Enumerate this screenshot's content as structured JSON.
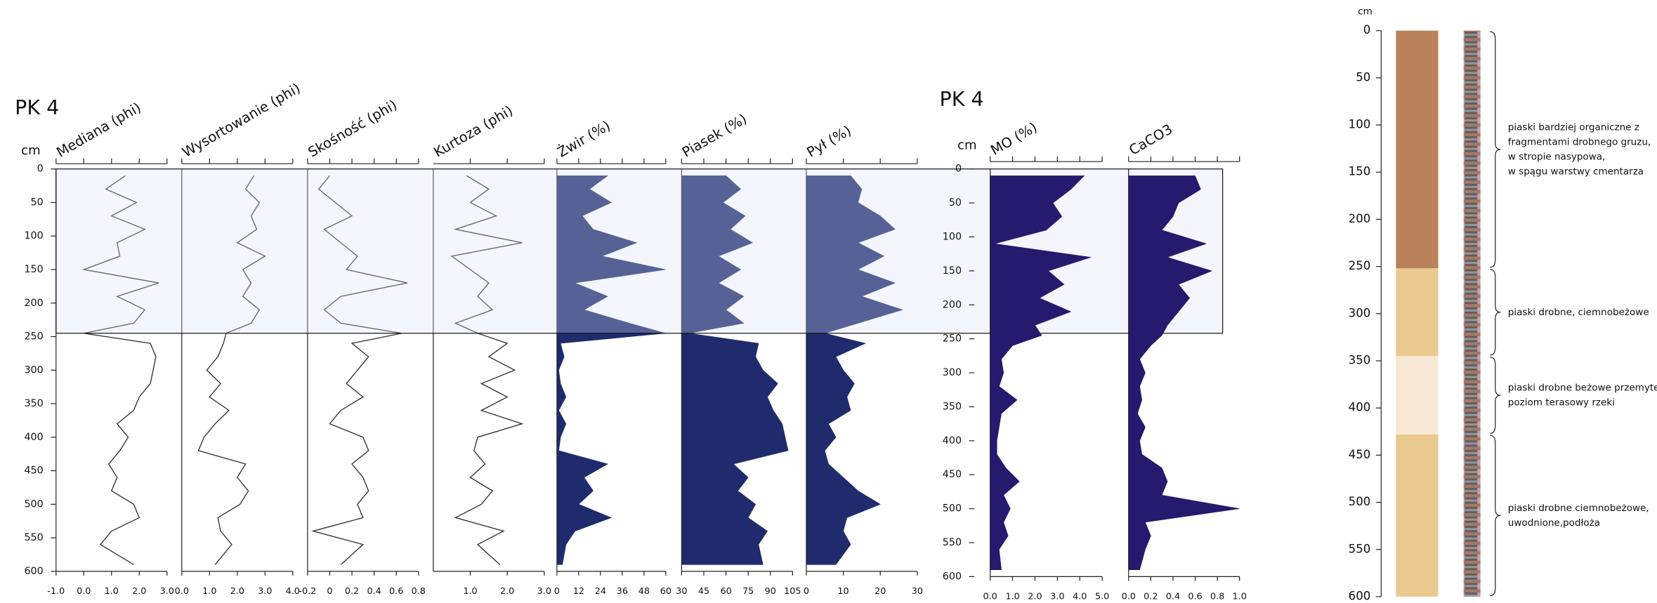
{
  "chart_data": [
    {
      "type": "panel-group",
      "title": "PK 4",
      "ylabel": "cm",
      "ylim": [
        0,
        600
      ],
      "yticks": [
        0,
        50,
        100,
        150,
        200,
        250,
        300,
        350,
        400,
        450,
        500,
        550,
        600
      ],
      "highlight": [
        0,
        245
      ],
      "panels": [
        {
          "type": "line",
          "title": "Mediana (phi)",
          "color": "#333333",
          "xlim": [
            -1,
            3
          ],
          "xticks": [
            {
              "value": -1,
              "label": "-1.0"
            },
            {
              "value": 0,
              "label": "0.0"
            },
            {
              "value": 1,
              "label": "1.0"
            },
            {
              "value": 2,
              "label": "2.0"
            },
            {
              "value": 3,
              "label": "3.0"
            }
          ],
          "y": [
            10,
            30,
            50,
            70,
            90,
            110,
            130,
            150,
            170,
            190,
            210,
            230,
            245,
            260,
            280,
            300,
            320,
            340,
            360,
            380,
            400,
            420,
            440,
            460,
            480,
            500,
            520,
            540,
            560,
            590
          ],
          "values": [
            1.5,
            0.8,
            1.9,
            1.0,
            2.2,
            1.2,
            1.3,
            0.0,
            2.7,
            1.2,
            2.2,
            1.8,
            0.0,
            2.4,
            2.6,
            2.5,
            2.4,
            2.0,
            1.8,
            1.2,
            1.6,
            1.3,
            0.9,
            1.2,
            1.0,
            1.8,
            2.0,
            1.0,
            0.6,
            1.8
          ]
        },
        {
          "type": "line",
          "title": "Wysortowanie (phi)",
          "color": "#333333",
          "xlim": [
            0,
            4
          ],
          "xticks": [
            {
              "value": 0,
              "label": "0.0"
            },
            {
              "value": 1,
              "label": "1.0"
            },
            {
              "value": 2,
              "label": "2.0"
            },
            {
              "value": 3,
              "label": "3.0"
            },
            {
              "value": 4,
              "label": "4.0"
            }
          ],
          "y": [
            10,
            30,
            50,
            70,
            90,
            110,
            130,
            150,
            170,
            190,
            210,
            230,
            245,
            260,
            280,
            300,
            320,
            340,
            360,
            380,
            400,
            420,
            440,
            460,
            480,
            500,
            520,
            540,
            560,
            590
          ],
          "values": [
            2.6,
            2.3,
            2.8,
            2.5,
            2.7,
            2.0,
            3.0,
            2.2,
            2.5,
            2.2,
            2.8,
            2.5,
            1.6,
            1.5,
            1.3,
            0.9,
            1.4,
            1.0,
            1.7,
            1.2,
            0.8,
            0.6,
            2.3,
            2.0,
            2.4,
            2.1,
            1.3,
            1.4,
            1.8,
            1.2
          ]
        },
        {
          "type": "line",
          "title": "Skośność (phi)",
          "color": "#333333",
          "xlim": [
            -0.2,
            0.8
          ],
          "xticks": [
            -0.2,
            0,
            0.2,
            0.4,
            0.6,
            0.8
          ],
          "y": [
            10,
            30,
            50,
            70,
            90,
            110,
            130,
            150,
            170,
            190,
            210,
            230,
            245,
            260,
            280,
            300,
            320,
            340,
            360,
            380,
            400,
            420,
            440,
            460,
            480,
            500,
            520,
            540,
            560,
            590
          ],
          "values": [
            0.0,
            -0.1,
            0.05,
            0.2,
            -0.05,
            0.1,
            0.25,
            0.15,
            0.7,
            0.1,
            -0.05,
            0.1,
            0.65,
            0.2,
            0.35,
            0.25,
            0.15,
            0.3,
            0.1,
            0.0,
            0.3,
            0.35,
            0.2,
            0.3,
            0.35,
            0.25,
            0.3,
            -0.15,
            0.3,
            0.1
          ]
        },
        {
          "type": "line",
          "title": "Kurtoza (phi)",
          "color": "#333333",
          "xlim": [
            0,
            3
          ],
          "xticks": [
            {
              "value": 1,
              "label": "1.0"
            },
            {
              "value": 2,
              "label": "2.0"
            },
            {
              "value": 3,
              "label": "3.0"
            }
          ],
          "y": [
            10,
            30,
            50,
            70,
            90,
            110,
            130,
            150,
            170,
            190,
            210,
            230,
            245,
            260,
            280,
            300,
            320,
            340,
            360,
            380,
            400,
            420,
            440,
            460,
            480,
            500,
            520,
            540,
            560,
            590
          ],
          "values": [
            0.9,
            1.5,
            1.0,
            1.7,
            0.6,
            2.4,
            0.5,
            1.0,
            1.5,
            1.2,
            1.6,
            0.6,
            1.2,
            2.0,
            1.5,
            2.2,
            1.3,
            2.0,
            1.3,
            2.4,
            1.2,
            1.1,
            1.4,
            1.0,
            1.6,
            1.3,
            0.6,
            1.9,
            1.2,
            1.8
          ]
        },
        {
          "type": "area",
          "title": "Żwir (%)",
          "color": "#1f2b6d",
          "xlim": [
            0,
            60
          ],
          "xticks": [
            0,
            12,
            24,
            36,
            48,
            60
          ],
          "y": [
            10,
            30,
            50,
            70,
            90,
            110,
            130,
            150,
            170,
            190,
            210,
            230,
            245,
            260,
            280,
            300,
            320,
            340,
            360,
            380,
            400,
            420,
            440,
            460,
            480,
            500,
            520,
            540,
            560,
            590
          ],
          "values": [
            28,
            18,
            30,
            14,
            20,
            44,
            25,
            60,
            10,
            28,
            15,
            40,
            60,
            2,
            4,
            1,
            2,
            5,
            1,
            5,
            2,
            1,
            28,
            15,
            20,
            12,
            30,
            10,
            5,
            3
          ]
        },
        {
          "type": "area",
          "title": "Piasek (%)",
          "color": "#1f2b6d",
          "xlim": [
            30,
            105
          ],
          "xticks": [
            30,
            45,
            60,
            75,
            90,
            105
          ],
          "y": [
            10,
            30,
            50,
            70,
            90,
            110,
            130,
            150,
            170,
            190,
            210,
            230,
            245,
            260,
            280,
            300,
            320,
            340,
            360,
            380,
            400,
            420,
            440,
            460,
            480,
            500,
            520,
            540,
            560,
            590
          ],
          "values": [
            60,
            70,
            58,
            73,
            63,
            78,
            55,
            70,
            55,
            72,
            60,
            72,
            35,
            82,
            80,
            85,
            95,
            88,
            92,
            98,
            100,
            102,
            65,
            75,
            68,
            80,
            75,
            88,
            82,
            85
          ]
        },
        {
          "type": "area",
          "title": "Pył (%)",
          "color": "#1f2b6d",
          "xlim": [
            0,
            30
          ],
          "xticks": [
            0,
            10,
            20,
            30
          ],
          "y": [
            10,
            30,
            50,
            70,
            90,
            110,
            130,
            150,
            170,
            190,
            210,
            230,
            245,
            260,
            280,
            300,
            320,
            340,
            360,
            380,
            400,
            420,
            440,
            460,
            480,
            500,
            520,
            540,
            560,
            590
          ],
          "values": [
            12,
            15,
            14,
            20,
            24,
            14,
            21,
            14,
            24,
            15,
            26,
            14,
            5,
            16,
            8,
            10,
            13,
            11,
            12,
            6,
            8,
            5,
            6,
            10,
            14,
            20,
            11,
            10,
            12,
            8
          ]
        }
      ]
    },
    {
      "type": "panel-group",
      "title": "PK 4",
      "ylabel": "cm",
      "ylim": [
        0,
        600
      ],
      "yticks": [
        0,
        50,
        100,
        150,
        200,
        250,
        300,
        350,
        400,
        450,
        500,
        550,
        600
      ],
      "panels": [
        {
          "type": "area",
          "title": "MO (%)",
          "color": "#241a6e",
          "xlim": [
            0,
            5
          ],
          "xticks": [
            {
              "value": 0,
              "label": "0.0"
            },
            {
              "value": 1,
              "label": "1.0"
            },
            {
              "value": 2,
              "label": "2.0"
            },
            {
              "value": 3,
              "label": "3.0"
            },
            {
              "value": 4,
              "label": "4.0"
            },
            {
              "value": 5,
              "label": "5.0"
            }
          ],
          "y": [
            10,
            30,
            50,
            70,
            90,
            110,
            130,
            150,
            170,
            190,
            210,
            230,
            245,
            260,
            280,
            300,
            320,
            340,
            360,
            380,
            400,
            420,
            440,
            460,
            480,
            500,
            520,
            540,
            560,
            590
          ],
          "values": [
            4.2,
            3.6,
            2.8,
            3.2,
            2.5,
            0.2,
            4.5,
            2.6,
            3.3,
            2.2,
            3.6,
            2.0,
            2.3,
            1.0,
            0.5,
            0.6,
            0.4,
            1.2,
            0.5,
            0.4,
            0.3,
            0.3,
            0.7,
            1.3,
            0.6,
            0.9,
            0.6,
            0.8,
            0.4,
            0.5
          ]
        },
        {
          "type": "area",
          "title": "CaCO3",
          "color": "#241a6e",
          "xlim": [
            0,
            1
          ],
          "xticks": [
            {
              "value": 0,
              "label": "0.0"
            },
            0.2,
            0.4,
            0.6,
            0.8,
            {
              "value": 1,
              "label": "1.0"
            }
          ],
          "y": [
            10,
            30,
            50,
            70,
            90,
            110,
            130,
            150,
            170,
            190,
            210,
            230,
            245,
            260,
            280,
            300,
            320,
            340,
            360,
            380,
            400,
            420,
            440,
            460,
            480,
            500,
            520,
            540,
            560,
            590
          ],
          "values": [
            0.6,
            0.65,
            0.45,
            0.4,
            0.3,
            0.7,
            0.35,
            0.75,
            0.45,
            0.55,
            0.45,
            0.35,
            0.3,
            0.2,
            0.1,
            0.15,
            0.1,
            0.12,
            0.08,
            0.15,
            0.1,
            0.12,
            0.3,
            0.35,
            0.3,
            1.0,
            0.15,
            0.2,
            0.15,
            0.1
          ]
        }
      ]
    },
    {
      "type": "lithology",
      "ylabel": "cm",
      "ylim": [
        0,
        600
      ],
      "yticks": [
        0,
        50,
        100,
        150,
        200,
        250,
        300,
        350,
        400,
        450,
        500,
        550,
        600
      ],
      "layers": [
        {
          "top": 0,
          "bottom": 252,
          "color": "#b9825a",
          "description": [
            "piaski bardziej organiczne z",
            "fragmentami drobnego gruzu,",
            "w stropie nasypowa,",
            "w spągu warstwy cmentarza"
          ]
        },
        {
          "top": 252,
          "bottom": 345,
          "color": "#e9c98e",
          "description": [
            "piaski drobne, ciemnobeżowe"
          ]
        },
        {
          "top": 345,
          "bottom": 428,
          "color": "#f6e8d5",
          "description": [
            "piaski drobne beżowe przemyte",
            "poziom terasowy rzeki"
          ]
        },
        {
          "top": 428,
          "bottom": 600,
          "color": "#e9c98e",
          "description": [
            "piaski drobne ciemnobeżowe,",
            "uwodnione,podłoża"
          ]
        }
      ]
    }
  ]
}
